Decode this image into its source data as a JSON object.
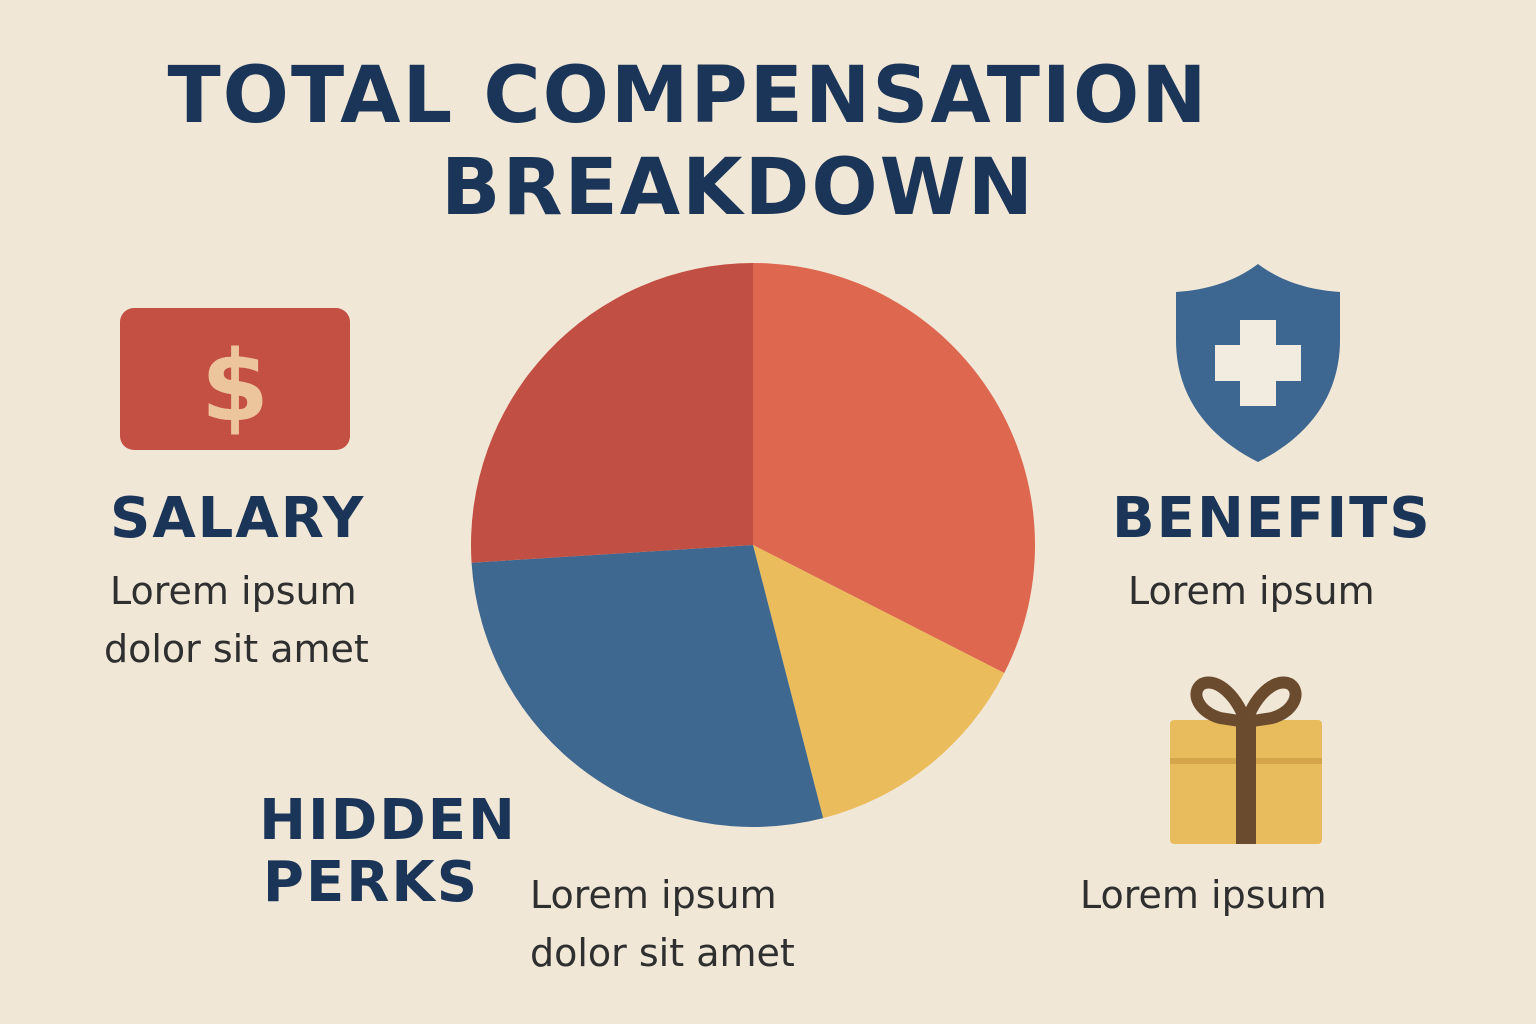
{
  "title_line1": "TOTAL COMPENSATION",
  "title_line2": "BREAKDOWN",
  "salary": {
    "label": "SALARY",
    "desc_line1": "Lorem ipsum",
    "desc_line2": "dolor sit amet",
    "icon": "dollar-bill-icon",
    "color": "#c44f43"
  },
  "benefits": {
    "label": "BENEFITS",
    "desc": "Lorem ipsum",
    "icon": "shield-plus-icon",
    "color": "#3d6791"
  },
  "gift": {
    "desc": "Lorem ipsum",
    "icon": "gift-icon",
    "color": "#e8bc5c"
  },
  "hidden_perks": {
    "label_line1": "HIDDEN",
    "label_line2": "PERKS",
    "desc_line1": "Lorem ipsum",
    "desc_line2": "dolor sit amet"
  },
  "chart_data": {
    "type": "pie",
    "title": "TOTAL COMPENSATION BREAKDOWN",
    "start_angle_deg": 0,
    "direction": "clockwise",
    "slices": [
      {
        "value": 32.5,
        "color": "#de6750"
      },
      {
        "value": 13.5,
        "color": "#eabc5b"
      },
      {
        "value": 28.0,
        "color": "#3f6891"
      },
      {
        "value": 26.0,
        "color": "#c24f43"
      }
    ]
  }
}
